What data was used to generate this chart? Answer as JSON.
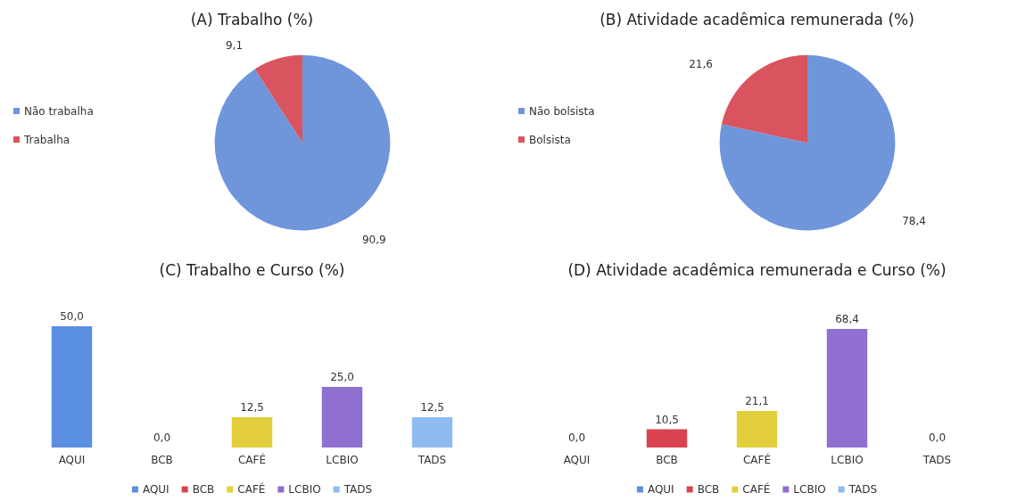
{
  "chart_data": [
    {
      "type": "pie",
      "title": "(A) Trabalho (%)",
      "categories": [
        "Não trabalha",
        "Trabalha"
      ],
      "values": [
        90.9,
        9.1
      ],
      "colors": [
        "#6f95db",
        "#d9545e"
      ],
      "value_labels": [
        "90,9",
        "9,1"
      ],
      "legend": "left"
    },
    {
      "type": "pie",
      "title": "(B) Atividade acadêmica remunerada (%)",
      "categories": [
        "Não bolsista",
        "Bolsista"
      ],
      "values": [
        78.4,
        21.6
      ],
      "colors": [
        "#6f95db",
        "#d9545e"
      ],
      "value_labels": [
        "78,4",
        "21,6"
      ],
      "legend": "left"
    },
    {
      "type": "bar",
      "title": "(C) Trabalho e Curso (%)",
      "categories": [
        "AQUI",
        "BCB",
        "CAFÉ",
        "LCBIO",
        "TADS"
      ],
      "legend": "bottom",
      "series": [
        {
          "name": "AQUI",
          "color": "#5b8fe0",
          "values": [
            50.0,
            null,
            null,
            null,
            null
          ],
          "value_labels": [
            "50,0",
            null,
            null,
            null,
            null
          ]
        },
        {
          "name": "BCB",
          "color": "#d9434f",
          "values": [
            null,
            0.0,
            null,
            null,
            null
          ],
          "value_labels": [
            null,
            "0,0",
            null,
            null,
            null
          ]
        },
        {
          "name": "CAFÉ",
          "color": "#e3cf3c",
          "values": [
            null,
            null,
            12.5,
            null,
            null
          ],
          "value_labels": [
            null,
            null,
            "12,5",
            null,
            null
          ]
        },
        {
          "name": "LCBIO",
          "color": "#8f6fd0",
          "values": [
            null,
            null,
            null,
            25.0,
            null
          ],
          "value_labels": [
            null,
            null,
            null,
            "25,0",
            null
          ]
        },
        {
          "name": "TADS",
          "color": "#8fbcef",
          "values": [
            null,
            null,
            null,
            null,
            12.5
          ],
          "value_labels": [
            null,
            null,
            null,
            null,
            "12,5"
          ]
        }
      ]
    },
    {
      "type": "bar",
      "title": "(D) Atividade acadêmica remunerada e Curso (%)",
      "categories": [
        "AQUI",
        "BCB",
        "CAFÉ",
        "LCBIO",
        "TADS"
      ],
      "legend": "bottom",
      "series": [
        {
          "name": "AQUI",
          "color": "#5b8fe0",
          "values": [
            0.0,
            null,
            null,
            null,
            null
          ],
          "value_labels": [
            "0,0",
            null,
            null,
            null,
            null
          ]
        },
        {
          "name": "BCB",
          "color": "#d9434f",
          "values": [
            null,
            10.5,
            null,
            null,
            null
          ],
          "value_labels": [
            null,
            "10,5",
            null,
            null,
            null
          ]
        },
        {
          "name": "CAFÉ",
          "color": "#e3cf3c",
          "values": [
            null,
            null,
            21.1,
            null,
            null
          ],
          "value_labels": [
            null,
            null,
            "21,1",
            null,
            null
          ]
        },
        {
          "name": "LCBIO",
          "color": "#8f6fd0",
          "values": [
            null,
            null,
            null,
            68.4,
            null
          ],
          "value_labels": [
            null,
            null,
            null,
            "68,4",
            null
          ]
        },
        {
          "name": "TADS",
          "color": "#8fbcef",
          "values": [
            null,
            null,
            null,
            null,
            0.0
          ],
          "value_labels": [
            null,
            null,
            null,
            null,
            "0,0"
          ]
        }
      ]
    }
  ]
}
